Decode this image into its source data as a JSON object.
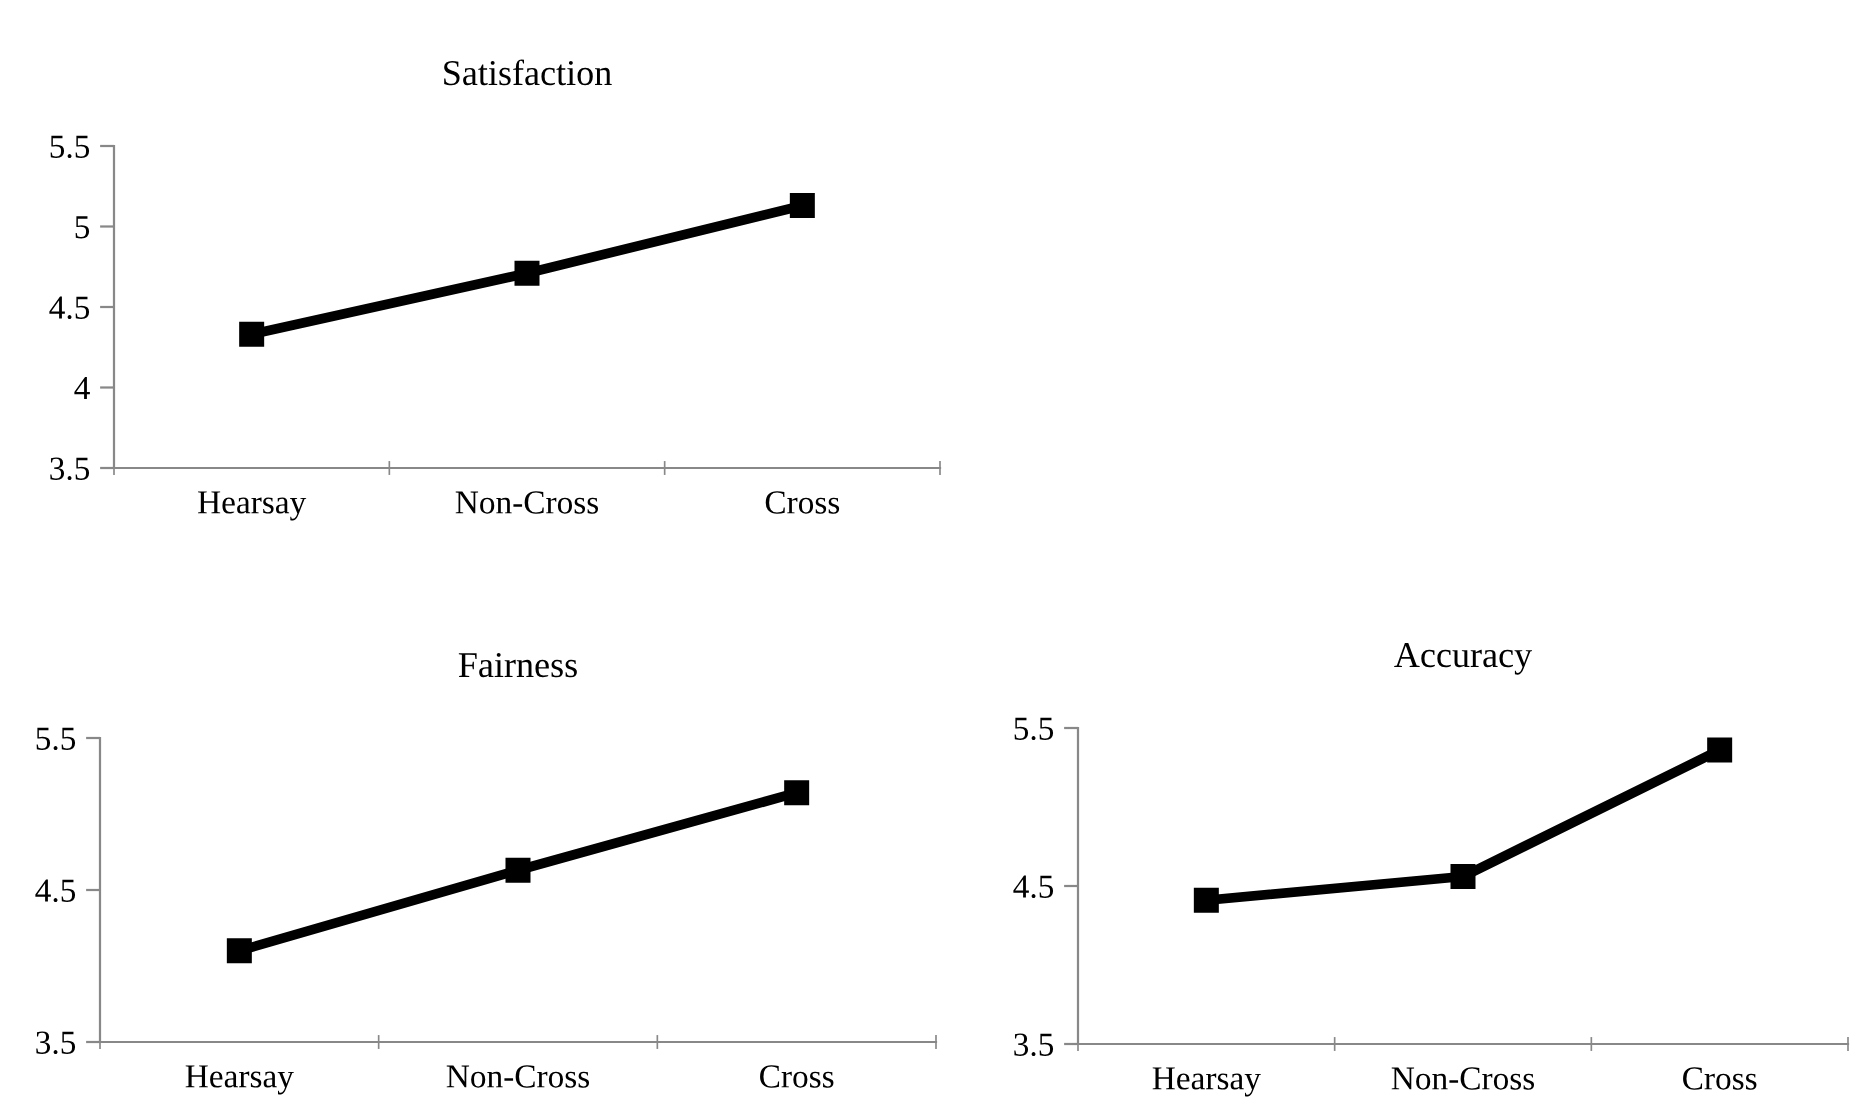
{
  "chart_data": [
    {
      "type": "line",
      "title": "Satisfaction",
      "categories": [
        "Hearsay",
        "Non-Cross",
        "Cross"
      ],
      "values": [
        4.33,
        4.71,
        5.13
      ],
      "color": "#000000",
      "marker": "square",
      "line_style": "solid",
      "ylim": [
        3.5,
        5.5
      ],
      "yticks": [
        3.5,
        4,
        4.5,
        5,
        5.5
      ],
      "grid": false,
      "legend": false
    },
    {
      "type": "line",
      "title": "Fairness",
      "categories": [
        "Hearsay",
        "Non-Cross",
        "Cross"
      ],
      "values": [
        4.1,
        4.63,
        5.14
      ],
      "color": "#000000",
      "marker": "square",
      "line_style": "solid",
      "ylim": [
        3.5,
        5.5
      ],
      "yticks": [
        3.5,
        4.5,
        5.5
      ],
      "grid": false,
      "legend": false
    },
    {
      "type": "line",
      "title": "Accuracy",
      "categories": [
        "Hearsay",
        "Non-Cross",
        "Cross"
      ],
      "values": [
        4.41,
        4.56,
        5.36
      ],
      "color": "#000000",
      "marker": "square",
      "line_style": "solid",
      "ylim": [
        3.5,
        5.5
      ],
      "yticks": [
        3.5,
        4.5,
        5.5
      ],
      "grid": false,
      "legend": false
    }
  ]
}
